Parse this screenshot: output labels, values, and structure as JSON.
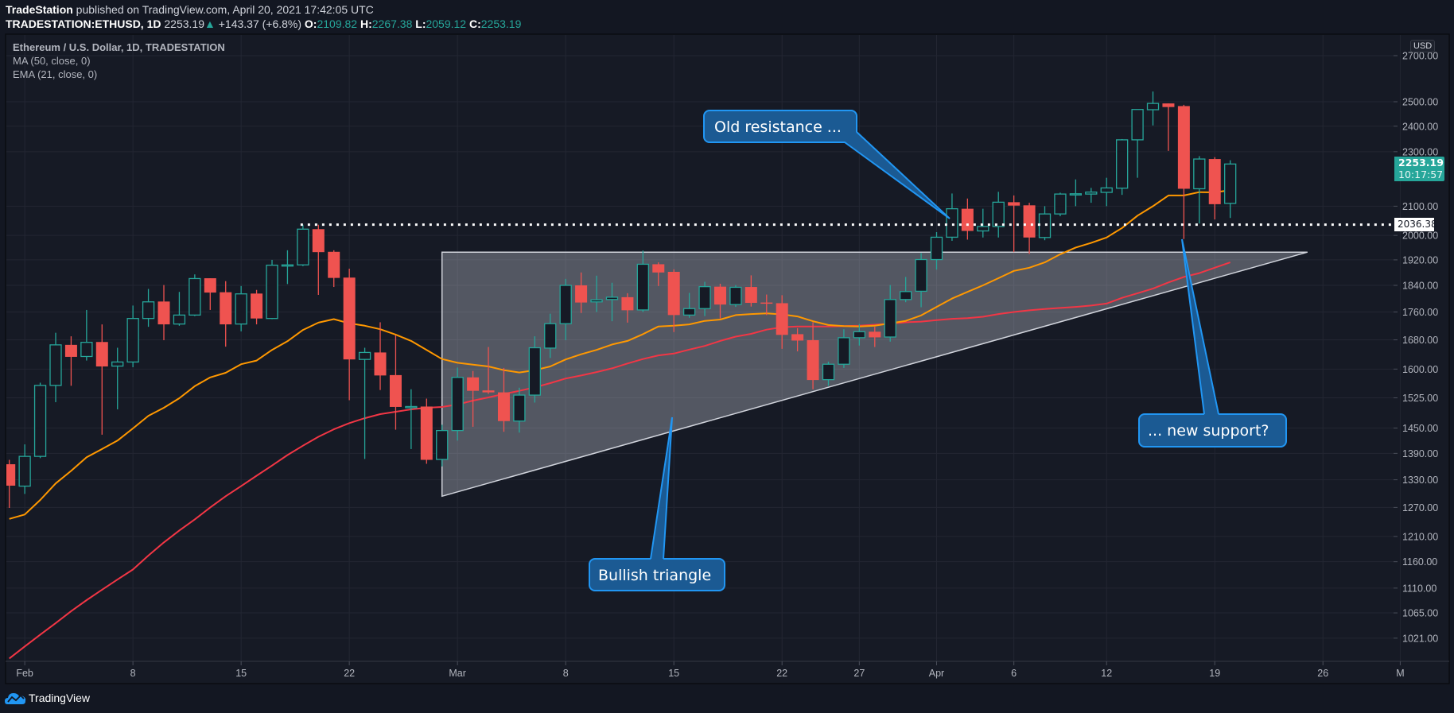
{
  "header": {
    "publisher": "TradeStation",
    "published_text": " published on TradingView.com, April 20, 2021 17:42:05 UTC",
    "symbol": "TRADESTATION:ETHUSD, 1D",
    "last": "2253.19",
    "change": "+143.37 (+6.8%)",
    "o_label": "O:",
    "o": "2109.82",
    "h_label": "H:",
    "h": "2267.38",
    "l_label": "L:",
    "l": "2059.12",
    "c_label": "C:",
    "c": "2253.19"
  },
  "legend": {
    "title": "Ethereum / U.S. Dollar, 1D, TRADESTATION",
    "ma": "MA (50, close, 0)",
    "ema": "EMA (21, close, 0)"
  },
  "price_axis": {
    "currency": "USD",
    "last_price": "2253.19",
    "countdown": "10:17:57",
    "level_label": "2036.38"
  },
  "annotations": {
    "old_resistance": "Old resistance ...",
    "new_support": "... new support?",
    "bullish_triangle": "Bullish triangle"
  },
  "footer": {
    "brand": "TradingView"
  },
  "colors": {
    "up": "#26a69a",
    "down": "#ef5350",
    "ema": "#ff9800",
    "ma": "#f23645",
    "callout": "#2196f3",
    "background": "#161a25"
  },
  "chart_data": {
    "type": "candlestick",
    "title": "Ethereum / U.S. Dollar, 1D, TRADESTATION",
    "y_scale": "log",
    "ylim": [
      985,
      2760
    ],
    "y_ticks": [
      "2700.00",
      "2500.00",
      "2400.00",
      "2300.00",
      "2100.00",
      "2000.00",
      "1920.00",
      "1840.00",
      "1760.00",
      "1680.00",
      "1600.00",
      "1525.00",
      "1450.00",
      "1390.00",
      "1330.00",
      "1270.00",
      "1210.00",
      "1160.00",
      "1110.00",
      "1065.00",
      "1021.00"
    ],
    "x_ticks": [
      {
        "label": "Feb",
        "x": 1
      },
      {
        "label": "8",
        "x": 8
      },
      {
        "label": "15",
        "x": 15
      },
      {
        "label": "22",
        "x": 22
      },
      {
        "label": "Mar",
        "x": 29
      },
      {
        "label": "8",
        "x": 36
      },
      {
        "label": "15",
        "x": 43
      },
      {
        "label": "22",
        "x": 50
      },
      {
        "label": "27",
        "x": 55
      },
      {
        "label": "Apr",
        "x": 60
      },
      {
        "label": "6",
        "x": 65
      },
      {
        "label": "12",
        "x": 71
      },
      {
        "label": "19",
        "x": 78
      },
      {
        "label": "26",
        "x": 85
      },
      {
        "label": "M",
        "x": 90
      }
    ],
    "ohlc_fields": [
      "open",
      "high",
      "low",
      "close"
    ],
    "ohlc": [
      [
        1365,
        1375,
        1269,
        1317
      ],
      [
        1316,
        1411,
        1299,
        1383
      ],
      [
        1383,
        1564,
        1379,
        1557
      ],
      [
        1557,
        1700,
        1514,
        1666
      ],
      [
        1666,
        1690,
        1556,
        1633
      ],
      [
        1634,
        1766,
        1623,
        1673
      ],
      [
        1674,
        1724,
        1434,
        1607
      ],
      [
        1608,
        1658,
        1496,
        1619
      ],
      [
        1619,
        1779,
        1605,
        1741
      ],
      [
        1741,
        1829,
        1717,
        1790
      ],
      [
        1791,
        1841,
        1679,
        1724
      ],
      [
        1725,
        1820,
        1720,
        1751
      ],
      [
        1751,
        1874,
        1748,
        1861
      ],
      [
        1862,
        1862,
        1766,
        1818
      ],
      [
        1819,
        1853,
        1661,
        1724
      ],
      [
        1725,
        1838,
        1704,
        1814
      ],
      [
        1815,
        1826,
        1724,
        1741
      ],
      [
        1741,
        1920,
        1739,
        1903
      ],
      [
        1903,
        1951,
        1844,
        1904
      ],
      [
        1904,
        2036,
        1900,
        2021
      ],
      [
        2021,
        2036,
        1811,
        1945
      ],
      [
        1946,
        1951,
        1835,
        1863
      ],
      [
        1864,
        1892,
        1519,
        1626
      ],
      [
        1626,
        1658,
        1377,
        1645
      ],
      [
        1645,
        1730,
        1545,
        1583
      ],
      [
        1584,
        1693,
        1446,
        1502
      ],
      [
        1502,
        1547,
        1400,
        1503
      ],
      [
        1503,
        1523,
        1366,
        1375
      ],
      [
        1376,
        1458,
        1360,
        1444
      ],
      [
        1444,
        1604,
        1420,
        1578
      ],
      [
        1578,
        1595,
        1453,
        1543
      ],
      [
        1544,
        1660,
        1535,
        1539
      ],
      [
        1539,
        1603,
        1441,
        1467
      ],
      [
        1467,
        1551,
        1439,
        1532
      ],
      [
        1532,
        1690,
        1513,
        1658
      ],
      [
        1657,
        1755,
        1630,
        1726
      ],
      [
        1726,
        1860,
        1679,
        1840
      ],
      [
        1840,
        1880,
        1757,
        1788
      ],
      [
        1790,
        1870,
        1760,
        1796
      ],
      [
        1797,
        1848,
        1733,
        1804
      ],
      [
        1804,
        1816,
        1729,
        1765
      ],
      [
        1766,
        1950,
        1760,
        1906
      ],
      [
        1906,
        1912,
        1838,
        1880
      ],
      [
        1882,
        1890,
        1702,
        1751
      ],
      [
        1751,
        1817,
        1743,
        1770
      ],
      [
        1770,
        1851,
        1748,
        1836
      ],
      [
        1836,
        1845,
        1741,
        1782
      ],
      [
        1782,
        1841,
        1775,
        1834
      ],
      [
        1835,
        1871,
        1776,
        1787
      ],
      [
        1788,
        1812,
        1751,
        1786
      ],
      [
        1786,
        1810,
        1655,
        1694
      ],
      [
        1696,
        1713,
        1648,
        1678
      ],
      [
        1679,
        1730,
        1547,
        1571
      ],
      [
        1572,
        1620,
        1556,
        1613
      ],
      [
        1613,
        1710,
        1603,
        1686
      ],
      [
        1686,
        1725,
        1664,
        1703
      ],
      [
        1703,
        1717,
        1660,
        1687
      ],
      [
        1688,
        1841,
        1675,
        1797
      ],
      [
        1797,
        1866,
        1789,
        1821
      ],
      [
        1822,
        1942,
        1774,
        1921
      ],
      [
        1921,
        2011,
        1889,
        1994
      ],
      [
        1994,
        2145,
        1982,
        2091
      ],
      [
        2091,
        2127,
        1986,
        2015
      ],
      [
        2015,
        2091,
        1993,
        2030
      ],
      [
        2030,
        2151,
        1993,
        2114
      ],
      [
        2114,
        2138,
        1945,
        2102
      ],
      [
        2103,
        2112,
        1939,
        1993
      ],
      [
        1993,
        2100,
        1984,
        2073
      ],
      [
        2073,
        2148,
        2065,
        2143
      ],
      [
        2143,
        2196,
        2100,
        2144
      ],
      [
        2143,
        2165,
        2112,
        2150
      ],
      [
        2149,
        2202,
        2100,
        2165
      ],
      [
        2164,
        2349,
        2140,
        2346
      ],
      [
        2346,
        2468,
        2202,
        2468
      ],
      [
        2467,
        2543,
        2403,
        2493
      ],
      [
        2493,
        2493,
        2303,
        2478
      ],
      [
        2482,
        2487,
        1988,
        2162
      ],
      [
        2162,
        2283,
        2040,
        2272
      ],
      [
        2272,
        2279,
        2054,
        2107
      ],
      [
        2109.82,
        2267.38,
        2059.12,
        2253.19
      ]
    ],
    "series": [
      {
        "name": "MA (50, close, 0)",
        "color": "#f23645",
        "values": [
          987,
          1007,
          1027,
          1047,
          1068,
          1088,
          1107,
          1126,
          1145,
          1172,
          1198,
          1222,
          1245,
          1270,
          1294,
          1316,
          1339,
          1362,
          1386,
          1408,
          1429,
          1447,
          1462,
          1474,
          1484,
          1490,
          1496,
          1500,
          1502,
          1508,
          1518,
          1526,
          1535,
          1543,
          1552,
          1563,
          1575,
          1583,
          1592,
          1602,
          1615,
          1627,
          1637,
          1642,
          1653,
          1663,
          1677,
          1689,
          1697,
          1709,
          1716,
          1718,
          1718,
          1718,
          1719,
          1720,
          1723,
          1726,
          1730,
          1732,
          1736,
          1740,
          1742,
          1746,
          1754,
          1760,
          1765,
          1769,
          1772,
          1775,
          1779,
          1785,
          1802,
          1816,
          1830,
          1849,
          1866,
          1878,
          1895,
          1912
        ]
      },
      {
        "name": "EMA (21, close, 0)",
        "color": "#ff9800",
        "values": [
          1246,
          1255,
          1286,
          1322,
          1350,
          1381,
          1400,
          1420,
          1449,
          1480,
          1500,
          1524,
          1555,
          1578,
          1590,
          1613,
          1623,
          1652,
          1676,
          1708,
          1729,
          1739,
          1727,
          1720,
          1710,
          1695,
          1677,
          1652,
          1627,
          1617,
          1612,
          1607,
          1597,
          1591,
          1597,
          1607,
          1626,
          1640,
          1652,
          1667,
          1677,
          1696,
          1718,
          1720,
          1724,
          1734,
          1738,
          1751,
          1754,
          1756,
          1753,
          1747,
          1733,
          1722,
          1719,
          1718,
          1720,
          1727,
          1734,
          1750,
          1775,
          1800,
          1820,
          1840,
          1862,
          1885,
          1895,
          1912,
          1938,
          1960,
          1975,
          1993,
          2025,
          2067,
          2100,
          2138,
          2138,
          2150,
          2149,
          2157
        ]
      }
    ],
    "drawings": {
      "triangle": [
        [
          28,
          1945
        ],
        [
          84,
          1945
        ],
        [
          28,
          1294
        ]
      ],
      "horizontal_ray": {
        "from_x": 19,
        "price": 2036.38
      }
    }
  }
}
